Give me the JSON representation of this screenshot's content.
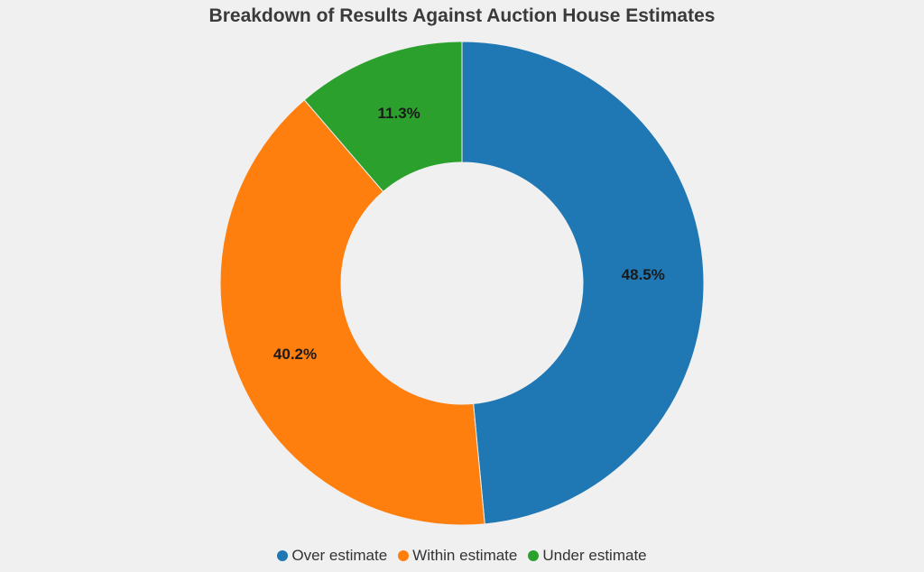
{
  "chart_data": {
    "type": "pie",
    "donut": true,
    "title": "Breakdown of Results Against Auction House Estimates",
    "categories": [
      "Over estimate",
      "Within estimate",
      "Under estimate"
    ],
    "values": [
      48.5,
      40.2,
      11.3
    ],
    "labels": [
      "48.5%",
      "40.2%",
      "11.3%"
    ],
    "colors": [
      "#1f77b4",
      "#ff7f0e",
      "#2ca02c"
    ],
    "legend_position": "bottom",
    "start_angle": "top",
    "direction": "clockwise"
  }
}
